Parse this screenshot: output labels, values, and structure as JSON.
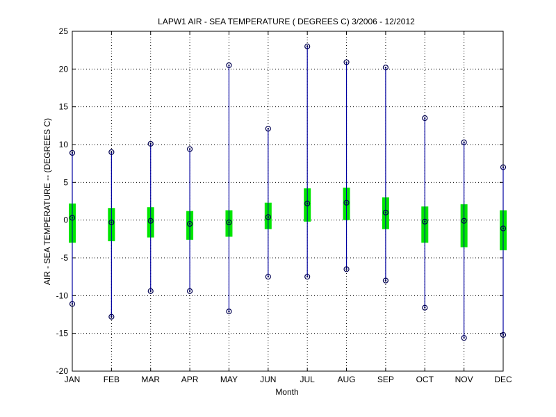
{
  "chart_data": {
    "type": "box",
    "title": "LAPW1  AIR - SEA TEMPERATURE ( DEGREES C) 3/2006 - 12/2012",
    "xlabel": "Month",
    "ylabel": "AIR - SEA TEMPERATURE -- (DEGREES C)",
    "ylim": [
      -20,
      25
    ],
    "yticks": [
      -20,
      -15,
      -10,
      -5,
      0,
      5,
      10,
      15,
      20,
      25
    ],
    "grid": true,
    "categories": [
      "JAN",
      "FEB",
      "MAR",
      "APR",
      "MAY",
      "JUN",
      "JUL",
      "AUG",
      "SEP",
      "OCT",
      "NOV",
      "DEC"
    ],
    "series": [
      {
        "min": [
          -11.1,
          -12.8,
          -9.4,
          -9.4,
          -12.1,
          -7.5,
          -7.5,
          -6.5,
          -8.0,
          -11.6,
          -15.6,
          -15.2
        ],
        "q1": [
          -3.0,
          -2.8,
          -2.3,
          -2.6,
          -2.2,
          -1.2,
          -0.2,
          0.0,
          -1.2,
          -3.0,
          -3.6,
          -4.0
        ],
        "median": [
          0.3,
          -0.3,
          -0.1,
          -0.5,
          -0.3,
          0.4,
          2.2,
          2.3,
          1.0,
          -0.2,
          -0.1,
          -1.1
        ],
        "q3": [
          2.2,
          1.6,
          1.7,
          1.2,
          1.3,
          2.3,
          4.2,
          4.3,
          3.0,
          1.8,
          2.1,
          1.3
        ],
        "max": [
          8.9,
          9.0,
          10.1,
          9.4,
          20.5,
          12.1,
          23.0,
          20.9,
          20.2,
          13.5,
          10.3,
          7.0
        ]
      }
    ],
    "colors": {
      "whisker": "#0000a0",
      "box": "#00e600",
      "marker": "#000050"
    }
  }
}
